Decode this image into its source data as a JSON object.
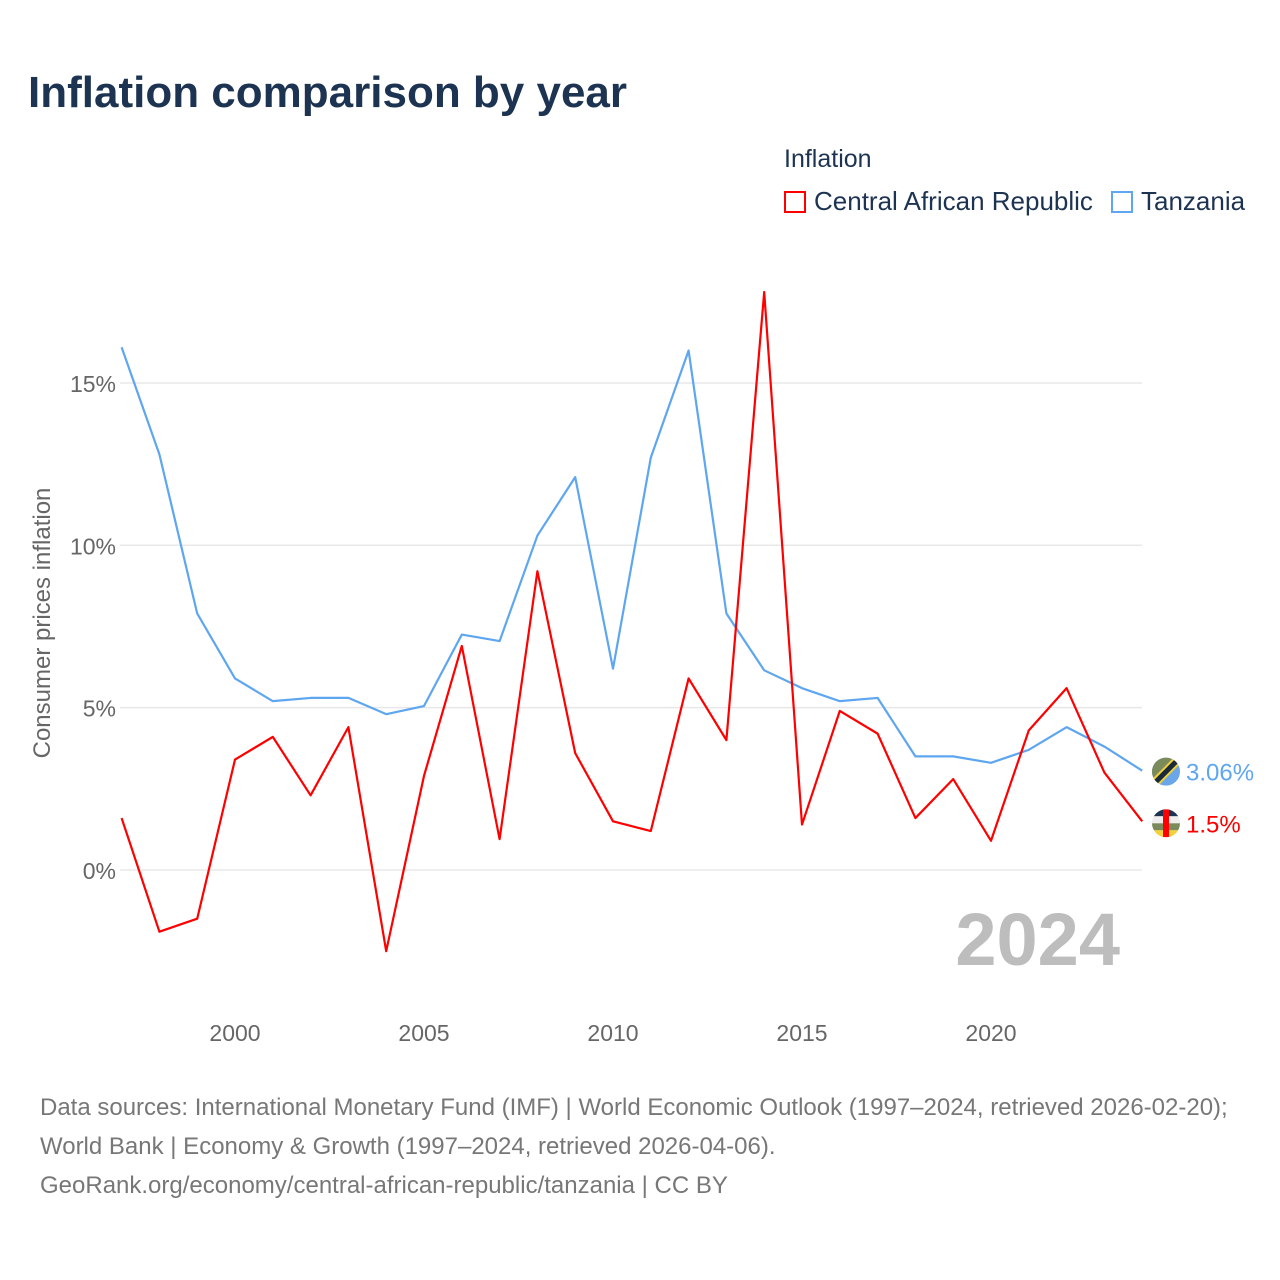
{
  "chart_data": {
    "type": "line",
    "title": "Inflation comparison by year",
    "ylabel": "Consumer prices inflation",
    "xlabel": "",
    "legend_title": "Inflation",
    "legend_placement": "top-right",
    "x": [
      1997,
      1998,
      1999,
      2000,
      2001,
      2002,
      2003,
      2004,
      2005,
      2006,
      2007,
      2008,
      2009,
      2010,
      2011,
      2012,
      2013,
      2014,
      2015,
      2016,
      2017,
      2018,
      2019,
      2020,
      2021,
      2022,
      2023,
      2024
    ],
    "xlim": [
      1997,
      2024
    ],
    "ylim": [
      -4.2,
      18.5
    ],
    "x_ticks": [
      2000,
      2005,
      2010,
      2015,
      2020
    ],
    "y_ticks": [
      {
        "value": 0,
        "label": "0%"
      },
      {
        "value": 5,
        "label": "5%"
      },
      {
        "value": 10,
        "label": "10%"
      },
      {
        "value": 15,
        "label": "15%"
      }
    ],
    "grid": true,
    "year_watermark": "2024",
    "series": [
      {
        "name": "Central African Republic",
        "color": "#ff0000",
        "end_label": "1.5%",
        "values": [
          1.6,
          -1.9,
          -1.5,
          3.4,
          4.1,
          2.3,
          4.4,
          -2.5,
          2.9,
          6.9,
          0.95,
          9.2,
          3.6,
          1.5,
          1.2,
          5.9,
          4.0,
          17.8,
          1.4,
          4.9,
          4.2,
          1.6,
          2.8,
          0.9,
          4.3,
          5.6,
          3.0,
          1.5
        ]
      },
      {
        "name": "Tanzania",
        "color": "#5ea6f0",
        "end_label": "3.06%",
        "values": [
          16.1,
          12.8,
          7.9,
          5.9,
          5.2,
          5.3,
          5.3,
          4.8,
          5.05,
          7.25,
          7.05,
          10.3,
          12.1,
          6.2,
          12.7,
          16.0,
          7.9,
          6.15,
          5.6,
          5.2,
          5.3,
          3.5,
          3.5,
          3.3,
          3.7,
          4.4,
          3.8,
          3.06
        ]
      }
    ]
  },
  "footer": {
    "sources": "Data sources: International Monetary Fund (IMF) | World Economic Outlook (1997–2024, retrieved 2026-02-20); World Bank | Economy & Growth (1997–2024, retrieved 2026-04-06).",
    "link": "GeoRank.org/economy/central-african-republic/tanzania | CC BY"
  }
}
